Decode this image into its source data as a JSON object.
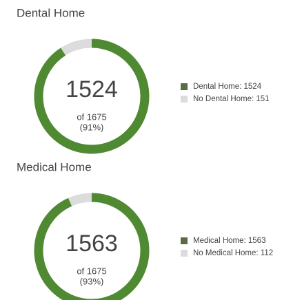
{
  "chart_data": [
    {
      "type": "donut",
      "title": "Dental Home",
      "categories": [
        "Dental Home",
        "No Dental Home"
      ],
      "values": [
        1524,
        151
      ],
      "colors": [
        "#4f8a32",
        "#dcdcdc"
      ],
      "legend_colors": [
        "#5b6b45",
        "#dcdcdc"
      ],
      "legend": [
        "Dental Home: 1524",
        "No Dental Home: 151"
      ],
      "total_label": "of 1675",
      "percent_label": "(91%)"
    },
    {
      "type": "donut",
      "title": "Medical Home",
      "categories": [
        "Medical Home",
        "No Medical Home"
      ],
      "values": [
        1563,
        112
      ],
      "colors": [
        "#4f8a32",
        "#dcdcdc"
      ],
      "legend_colors": [
        "#5b6b45",
        "#dcdcdc"
      ],
      "legend": [
        "Medical Home: 1563",
        "No Medical Home: 112"
      ],
      "total_label": "of 1675",
      "percent_label": "(93%)"
    }
  ]
}
